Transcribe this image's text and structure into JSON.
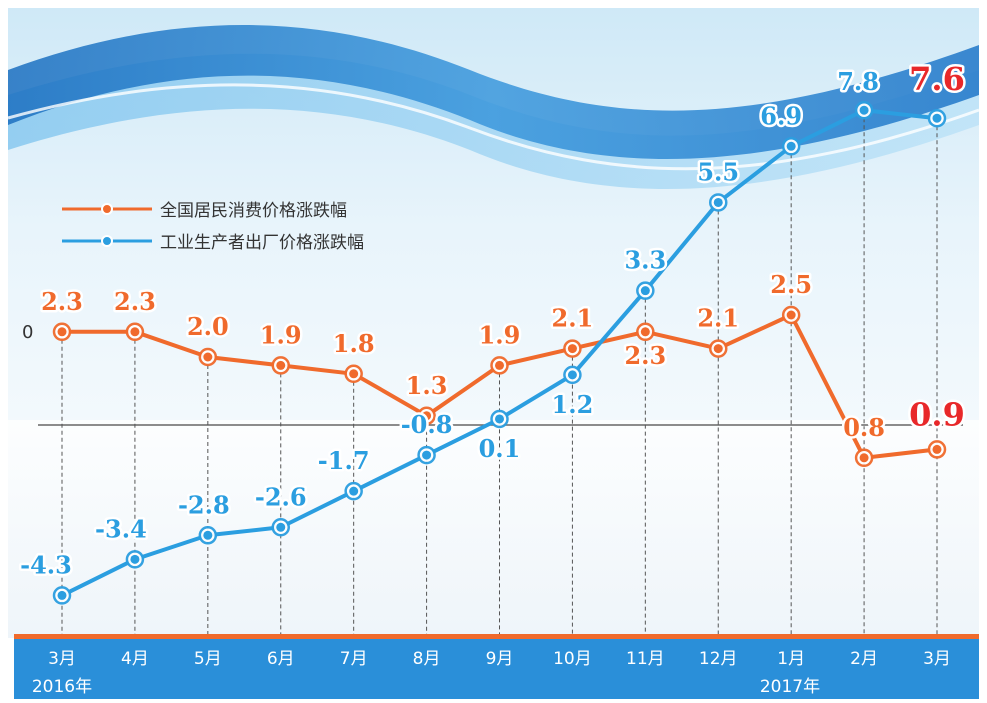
{
  "chart_data": {
    "type": "line",
    "categories": [
      "3月",
      "4月",
      "5月",
      "6月",
      "7月",
      "8月",
      "9月",
      "10月",
      "11月",
      "12月",
      "1月",
      "2月",
      "3月"
    ],
    "year_labels": [
      "2016年",
      "2017年"
    ],
    "zero_label": "0",
    "series": [
      {
        "name": "全国居民消费价格涨跌幅",
        "color": "#f06a2c",
        "values": [
          2.3,
          2.3,
          2.0,
          1.9,
          1.8,
          1.3,
          1.9,
          2.1,
          2.3,
          2.1,
          2.5,
          0.8,
          0.9
        ],
        "labels": [
          "2.3",
          "2.3",
          "2.0",
          "1.9",
          "1.8",
          "1.3",
          "1.9",
          "2.1",
          "2.3",
          "2.1",
          "2.5",
          "0.8",
          "0.9"
        ]
      },
      {
        "name": "工业生产者出厂价格涨跌幅",
        "color": "#2b9ee0",
        "values": [
          -4.3,
          -3.4,
          -2.8,
          -2.6,
          -1.7,
          -0.8,
          0.1,
          1.2,
          3.3,
          5.5,
          6.9,
          7.8,
          7.6
        ],
        "labels": [
          "-4.3",
          "-3.4",
          "-2.8",
          "-2.6",
          "-1.7",
          "-0.8",
          "0.1",
          "1.2",
          "3.3",
          "5.5",
          "6.9",
          "7.8",
          "7.6"
        ]
      }
    ],
    "legend_position": "top-left",
    "highlight_color": "#e8282a",
    "grid": true
  }
}
